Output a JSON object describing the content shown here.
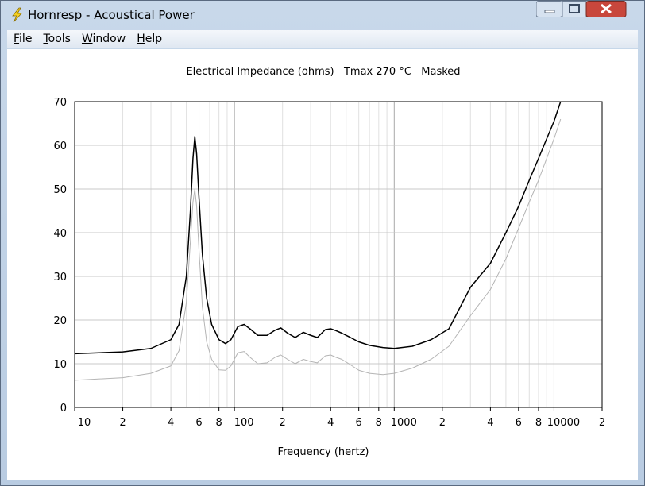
{
  "window": {
    "title": "Hornresp - Acoustical Power",
    "menu": [
      "File",
      "Tools",
      "Window",
      "Help"
    ]
  },
  "chart_data": {
    "type": "line",
    "title": "Electrical Impedance (ohms)   Tmax 270 °C   Masked",
    "x_label": "Frequency (hertz)",
    "x_scale": "log",
    "xlim": [
      10,
      20000
    ],
    "xticks": [
      10,
      {
        "value": 20,
        "label": "2"
      },
      {
        "value": 40,
        "label": "4"
      },
      {
        "value": 60,
        "label": "6"
      },
      {
        "value": 80,
        "label": "8"
      },
      100,
      {
        "value": 200,
        "label": "2"
      },
      {
        "value": 400,
        "label": "4"
      },
      {
        "value": 600,
        "label": "6"
      },
      {
        "value": 800,
        "label": "8"
      },
      1000,
      {
        "value": 2000,
        "label": "2"
      },
      {
        "value": 4000,
        "label": "4"
      },
      {
        "value": 6000,
        "label": "6"
      },
      {
        "value": 8000,
        "label": "8"
      },
      10000,
      {
        "value": 20000,
        "label": "2"
      }
    ],
    "ylim": [
      0,
      70
    ],
    "yticks": [
      0,
      10,
      20,
      30,
      40,
      50,
      60,
      70
    ],
    "grid": true,
    "minor_grid": true,
    "x": [
      10,
      20,
      30,
      40,
      45,
      50,
      53,
      55,
      56.5,
      58,
      60,
      63,
      67,
      72,
      80,
      88,
      95,
      105,
      115,
      125,
      140,
      160,
      180,
      195,
      215,
      240,
      270,
      300,
      330,
      370,
      400,
      430,
      470,
      520,
      600,
      700,
      850,
      1000,
      1300,
      1700,
      2200,
      3000,
      4000,
      5000,
      6000,
      7000,
      8000,
      9000,
      10000,
      11000
    ],
    "series": [
      {
        "color": "#000000",
        "values": [
          12.3,
          12.7,
          13.5,
          15.5,
          19,
          30,
          45,
          57,
          62,
          58,
          48,
          35,
          25,
          19,
          15.5,
          14.6,
          15.5,
          18.5,
          19,
          18,
          16.5,
          16.5,
          17.7,
          18.2,
          17,
          16,
          17.2,
          16.5,
          16,
          17.8,
          18,
          17.6,
          17,
          16.2,
          15,
          14.2,
          13.7,
          13.5,
          14,
          15.5,
          18,
          27.5,
          33,
          40,
          46,
          52,
          57,
          61.5,
          65.5,
          70
        ]
      },
      {
        "color": "#b4b4b4",
        "values": [
          6.2,
          6.8,
          7.8,
          9.5,
          13,
          24,
          38,
          47,
          50,
          46,
          36,
          23,
          15,
          11,
          8.6,
          8.5,
          9.5,
          12.5,
          12.8,
          11.5,
          10,
          10.2,
          11.5,
          12,
          11,
          10,
          11,
          10.5,
          10.2,
          11.8,
          12,
          11.5,
          11,
          10,
          8.5,
          7.8,
          7.5,
          7.8,
          9,
          11,
          14,
          21,
          27,
          34,
          41,
          47,
          52,
          57,
          61.5,
          66
        ]
      }
    ]
  }
}
